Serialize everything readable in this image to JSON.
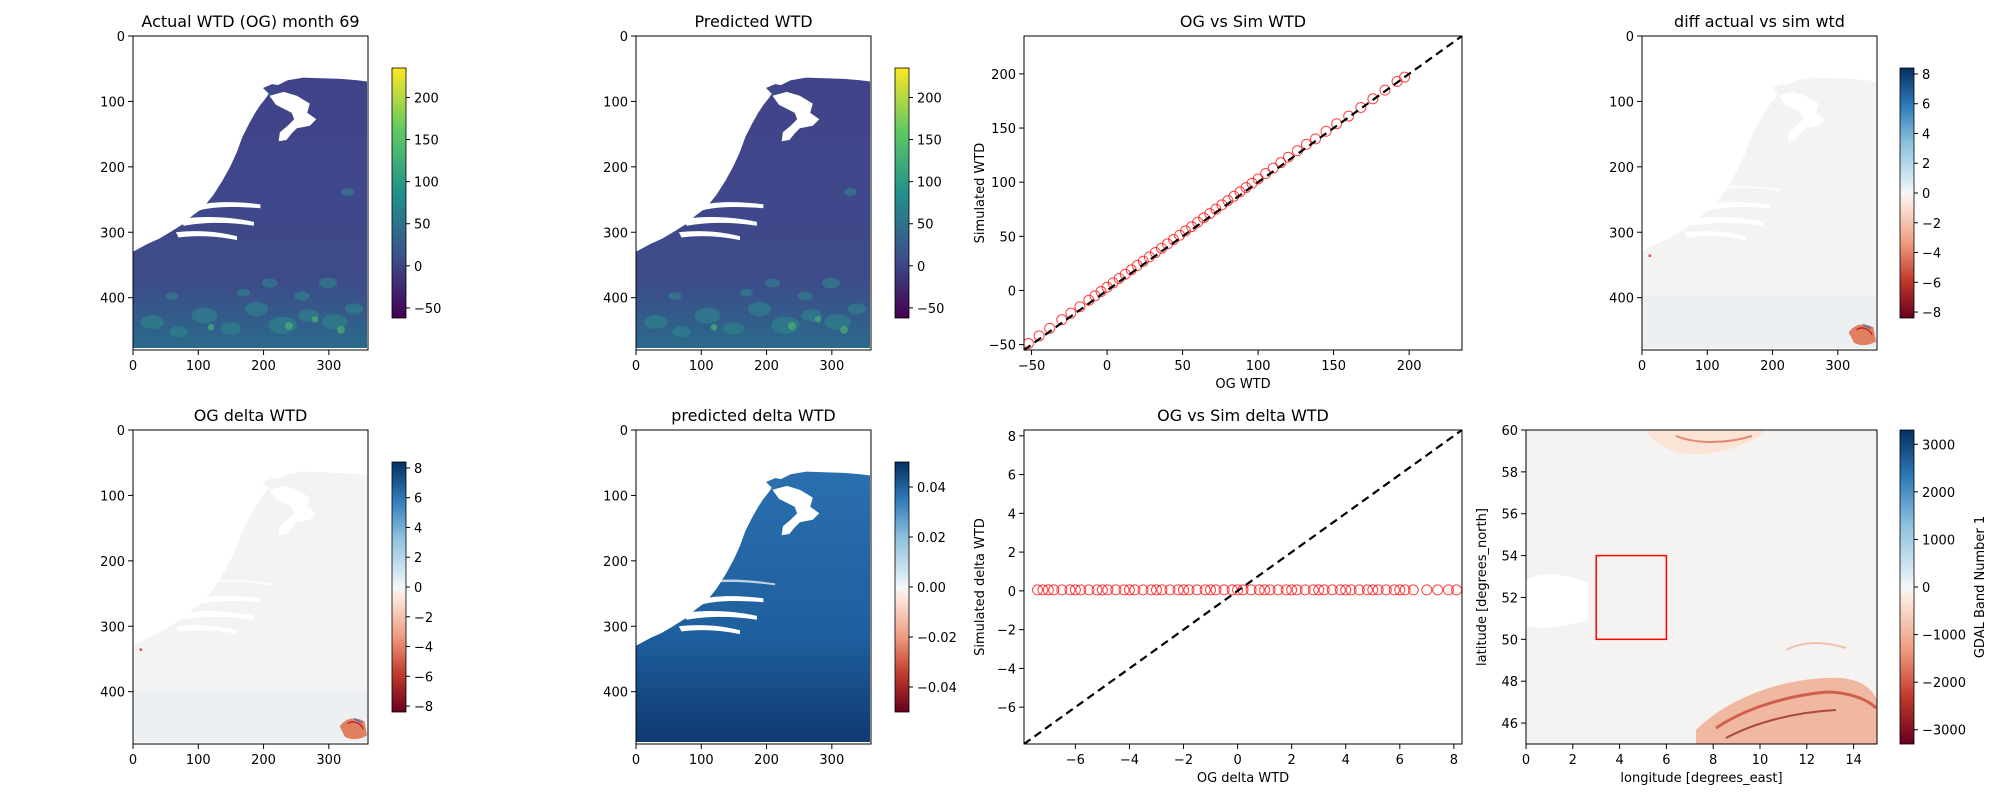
{
  "figure": {
    "background": "#ffffff"
  },
  "chart_data": [
    {
      "id": "p1",
      "type": "heatmap",
      "title": "Actual WTD (OG) month 69",
      "xlim": [
        0,
        360
      ],
      "ylim": [
        480,
        0
      ],
      "xticks": [
        0,
        100,
        200,
        300
      ],
      "yticks": [
        0,
        100,
        200,
        300,
        400
      ],
      "xlabel": "",
      "ylabel": "",
      "colorbar": {
        "cmap": "viridis",
        "range": [
          -62,
          235
        ],
        "ticks": [
          -50,
          0,
          50,
          100,
          150,
          200
        ],
        "label": ""
      },
      "content": "netherlands-map"
    },
    {
      "id": "p2",
      "type": "heatmap",
      "title": "Predicted WTD",
      "xlim": [
        0,
        360
      ],
      "ylim": [
        480,
        0
      ],
      "xticks": [
        0,
        100,
        200,
        300
      ],
      "yticks": [
        0,
        100,
        200,
        300,
        400
      ],
      "xlabel": "",
      "ylabel": "",
      "colorbar": {
        "cmap": "viridis",
        "range": [
          -62,
          235
        ],
        "ticks": [
          -50,
          0,
          50,
          100,
          150,
          200
        ],
        "label": ""
      },
      "content": "netherlands-map"
    },
    {
      "id": "p3",
      "type": "scatter",
      "title": "OG vs Sim WTD",
      "xlim": [
        -55,
        235
      ],
      "ylim": [
        -55,
        235
      ],
      "xticks": [
        -50,
        0,
        50,
        100,
        150,
        200
      ],
      "yticks": [
        -50,
        0,
        50,
        100,
        150,
        200
      ],
      "xlabel": "OG WTD",
      "ylabel": "Simulated WTD",
      "series": [
        {
          "name": "points",
          "marker": "open-circle",
          "color": "#ff0000",
          "x": [
            -52,
            -45,
            -38,
            -30,
            -24,
            -18,
            -12,
            -8,
            -4,
            0,
            4,
            8,
            12,
            16,
            20,
            24,
            28,
            32,
            36,
            40,
            44,
            48,
            52,
            56,
            60,
            64,
            68,
            72,
            76,
            80,
            84,
            88,
            92,
            96,
            100,
            105,
            110,
            115,
            120,
            126,
            132,
            138,
            145,
            152,
            160,
            168,
            176,
            184,
            192,
            197
          ],
          "y": [
            -49,
            -42,
            -35,
            -27,
            -21,
            -15,
            -9,
            -5,
            -1,
            3,
            7,
            11,
            15,
            19,
            23,
            27,
            31,
            35,
            39,
            43,
            47,
            51,
            55,
            59,
            63,
            67,
            71,
            75,
            79,
            83,
            87,
            91,
            95,
            99,
            103,
            108,
            113,
            118,
            123,
            129,
            135,
            140,
            147,
            154,
            161,
            169,
            177,
            185,
            193,
            197
          ]
        },
        {
          "name": "1:1 line",
          "style": "dashed",
          "color": "#000000",
          "x": [
            -55,
            235
          ],
          "y": [
            -55,
            235
          ]
        }
      ]
    },
    {
      "id": "p4",
      "type": "heatmap",
      "title": "diff actual vs sim wtd",
      "xlim": [
        0,
        360
      ],
      "ylim": [
        480,
        0
      ],
      "xticks": [
        0,
        100,
        200,
        300
      ],
      "yticks": [
        0,
        100,
        200,
        300,
        400
      ],
      "xlabel": "",
      "ylabel": "",
      "colorbar": {
        "cmap": "RdBu",
        "range": [
          -8.4,
          8.4
        ],
        "ticks": [
          -8,
          -6,
          -4,
          -2,
          0,
          2,
          4,
          6,
          8
        ],
        "label": ""
      },
      "content": "diff-map"
    },
    {
      "id": "p5",
      "type": "heatmap",
      "title": "OG delta WTD",
      "xlim": [
        0,
        360
      ],
      "ylim": [
        480,
        0
      ],
      "xticks": [
        0,
        100,
        200,
        300
      ],
      "yticks": [
        0,
        100,
        200,
        300,
        400
      ],
      "xlabel": "",
      "ylabel": "",
      "colorbar": {
        "cmap": "RdBu",
        "range": [
          -8.4,
          8.4
        ],
        "ticks": [
          -8,
          -6,
          -4,
          -2,
          0,
          2,
          4,
          6,
          8
        ],
        "label": ""
      },
      "content": "diff-map"
    },
    {
      "id": "p6",
      "type": "heatmap",
      "title": "predicted delta WTD",
      "xlim": [
        0,
        360
      ],
      "ylim": [
        480,
        0
      ],
      "xticks": [
        0,
        100,
        200,
        300
      ],
      "yticks": [
        0,
        100,
        200,
        300,
        400
      ],
      "xlabel": "",
      "ylabel": "",
      "colorbar": {
        "cmap": "RdBu",
        "range": [
          -0.05,
          0.05
        ],
        "ticks": [
          -0.04,
          -0.02,
          0.0,
          0.02,
          0.04
        ],
        "tick_labels": [
          "−0.04",
          "−0.02",
          "0.00",
          "0.02",
          "0.04"
        ],
        "label": ""
      },
      "content": "delta-map"
    },
    {
      "id": "p7",
      "type": "scatter",
      "title": "OG vs Sim delta WTD",
      "xlim": [
        -7.9,
        8.3
      ],
      "ylim": [
        -7.9,
        8.3
      ],
      "xticks": [
        -6,
        -4,
        -2,
        0,
        2,
        4,
        6,
        8
      ],
      "yticks": [
        -6,
        -4,
        -2,
        0,
        2,
        4,
        6,
        8
      ],
      "xlabel": "OG delta WTD",
      "ylabel": "Simulated delta WTD",
      "series": [
        {
          "name": "points",
          "marker": "open-circle",
          "color": "#ff0000",
          "x": [
            -7.4,
            -7.2,
            -7.0,
            -6.8,
            -6.5,
            -6.2,
            -6.0,
            -5.8,
            -5.5,
            -5.2,
            -5.0,
            -4.8,
            -4.5,
            -4.2,
            -4.0,
            -3.8,
            -3.5,
            -3.2,
            -3.0,
            -2.8,
            -2.5,
            -2.2,
            -2.0,
            -1.8,
            -1.5,
            -1.2,
            -1.0,
            -0.8,
            -0.5,
            -0.2,
            0.0,
            0.2,
            0.5,
            0.8,
            1.0,
            1.2,
            1.5,
            1.8,
            2.0,
            2.2,
            2.5,
            2.8,
            3.0,
            3.2,
            3.5,
            3.8,
            4.0,
            4.2,
            4.5,
            4.8,
            5.0,
            5.2,
            5.5,
            5.8,
            6.0,
            6.2,
            6.5,
            7.0,
            7.4,
            7.8,
            8.1
          ],
          "y": [
            0.05,
            0.05,
            0.05,
            0.05,
            0.05,
            0.05,
            0.05,
            0.05,
            0.05,
            0.05,
            0.05,
            0.05,
            0.05,
            0.05,
            0.05,
            0.05,
            0.05,
            0.05,
            0.05,
            0.05,
            0.05,
            0.05,
            0.05,
            0.05,
            0.05,
            0.05,
            0.05,
            0.05,
            0.05,
            0.05,
            0.05,
            0.05,
            0.05,
            0.05,
            0.05,
            0.05,
            0.05,
            0.05,
            0.05,
            0.05,
            0.05,
            0.05,
            0.05,
            0.05,
            0.05,
            0.05,
            0.05,
            0.05,
            0.05,
            0.05,
            0.05,
            0.05,
            0.05,
            0.05,
            0.05,
            0.05,
            0.05,
            0.05,
            0.05,
            0.05,
            0.05
          ]
        },
        {
          "name": "1:1 line",
          "style": "dashed",
          "color": "#000000",
          "x": [
            -7.9,
            8.3
          ],
          "y": [
            -7.9,
            8.3
          ]
        }
      ]
    },
    {
      "id": "p8",
      "type": "heatmap",
      "title": "",
      "xlim": [
        0,
        15
      ],
      "ylim": [
        45,
        60
      ],
      "xticks": [
        0,
        2,
        4,
        6,
        8,
        10,
        12,
        14
      ],
      "yticks": [
        46,
        48,
        50,
        52,
        54,
        56,
        58,
        60
      ],
      "xlabel": "longitude [degrees_east]",
      "ylabel": "latitude [degrees_north]",
      "colorbar": {
        "cmap": "RdBu",
        "range": [
          -3300,
          3300
        ],
        "ticks": [
          -3000,
          -2000,
          -1000,
          0,
          1000,
          2000,
          3000
        ],
        "tick_labels": [
          "−3000",
          "−2000",
          "−1000",
          "0",
          "1000",
          "2000",
          "3000"
        ],
        "label": "GDAL Band Number 1"
      },
      "content": "europe-map",
      "annotation": {
        "type": "rectangle",
        "color": "#ff0000",
        "x": [
          3,
          6
        ],
        "y": [
          50,
          54
        ]
      }
    }
  ]
}
